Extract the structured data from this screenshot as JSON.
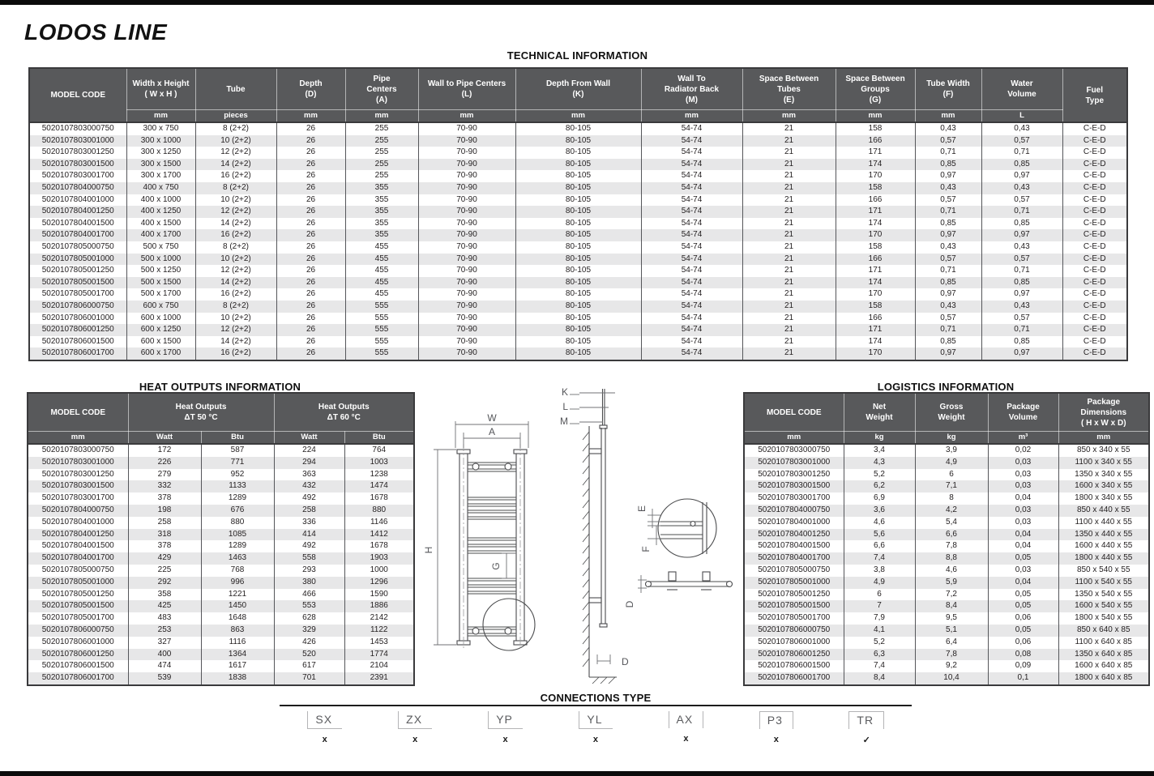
{
  "page": {
    "title": "LODOS LINE"
  },
  "colors": {
    "header_bg": "#58595B",
    "row_stripe": "#E7E7E8",
    "bar": "#0B0B0B"
  },
  "tech_section": {
    "title": "TECHNICAL INFORMATION",
    "table": {
      "headers": [
        "MODEL CODE",
        "Width x Height\n( W x H )",
        "Tube",
        "Depth\n(D)",
        "Pipe\nCenters\n(A)",
        "Wall to Pipe Centers\n(L)",
        "Depth From Wall\n(K)",
        "Wall To\nRadiator Back\n(M)",
        "Space Between\nTubes\n(E)",
        "Space Between\nGroups\n(G)",
        "Tube Width\n(F)",
        "Water\nVolume",
        "Fuel\nType"
      ],
      "units": [
        "mm",
        "pieces",
        "mm",
        "mm",
        "mm",
        "mm",
        "mm",
        "mm",
        "mm",
        "mm",
        "L"
      ],
      "rows": [
        [
          "5020107803000750",
          "300 x 750",
          "8 (2+2)",
          "26",
          "255",
          "70-90",
          "80-105",
          "54-74",
          "21",
          "158",
          "0,43",
          "0,43",
          "C-E-D"
        ],
        [
          "5020107803001000",
          "300 x 1000",
          "10 (2+2)",
          "26",
          "255",
          "70-90",
          "80-105",
          "54-74",
          "21",
          "166",
          "0,57",
          "0,57",
          "C-E-D"
        ],
        [
          "5020107803001250",
          "300 x 1250",
          "12 (2+2)",
          "26",
          "255",
          "70-90",
          "80-105",
          "54-74",
          "21",
          "171",
          "0,71",
          "0,71",
          "C-E-D"
        ],
        [
          "5020107803001500",
          "300 x 1500",
          "14 (2+2)",
          "26",
          "255",
          "70-90",
          "80-105",
          "54-74",
          "21",
          "174",
          "0,85",
          "0,85",
          "C-E-D"
        ],
        [
          "5020107803001700",
          "300 x 1700",
          "16 (2+2)",
          "26",
          "255",
          "70-90",
          "80-105",
          "54-74",
          "21",
          "170",
          "0,97",
          "0,97",
          "C-E-D"
        ],
        [
          "5020107804000750",
          "400 x 750",
          "8 (2+2)",
          "26",
          "355",
          "70-90",
          "80-105",
          "54-74",
          "21",
          "158",
          "0,43",
          "0,43",
          "C-E-D"
        ],
        [
          "5020107804001000",
          "400 x 1000",
          "10 (2+2)",
          "26",
          "355",
          "70-90",
          "80-105",
          "54-74",
          "21",
          "166",
          "0,57",
          "0,57",
          "C-E-D"
        ],
        [
          "5020107804001250",
          "400 x 1250",
          "12 (2+2)",
          "26",
          "355",
          "70-90",
          "80-105",
          "54-74",
          "21",
          "171",
          "0,71",
          "0,71",
          "C-E-D"
        ],
        [
          "5020107804001500",
          "400 x 1500",
          "14 (2+2)",
          "26",
          "355",
          "70-90",
          "80-105",
          "54-74",
          "21",
          "174",
          "0,85",
          "0,85",
          "C-E-D"
        ],
        [
          "5020107804001700",
          "400 x 1700",
          "16 (2+2)",
          "26",
          "355",
          "70-90",
          "80-105",
          "54-74",
          "21",
          "170",
          "0,97",
          "0,97",
          "C-E-D"
        ],
        [
          "5020107805000750",
          "500 x 750",
          "8 (2+2)",
          "26",
          "455",
          "70-90",
          "80-105",
          "54-74",
          "21",
          "158",
          "0,43",
          "0,43",
          "C-E-D"
        ],
        [
          "5020107805001000",
          "500 x 1000",
          "10 (2+2)",
          "26",
          "455",
          "70-90",
          "80-105",
          "54-74",
          "21",
          "166",
          "0,57",
          "0,57",
          "C-E-D"
        ],
        [
          "5020107805001250",
          "500 x 1250",
          "12 (2+2)",
          "26",
          "455",
          "70-90",
          "80-105",
          "54-74",
          "21",
          "171",
          "0,71",
          "0,71",
          "C-E-D"
        ],
        [
          "5020107805001500",
          "500 x 1500",
          "14 (2+2)",
          "26",
          "455",
          "70-90",
          "80-105",
          "54-74",
          "21",
          "174",
          "0,85",
          "0,85",
          "C-E-D"
        ],
        [
          "5020107805001700",
          "500 x 1700",
          "16 (2+2)",
          "26",
          "455",
          "70-90",
          "80-105",
          "54-74",
          "21",
          "170",
          "0,97",
          "0,97",
          "C-E-D"
        ],
        [
          "5020107806000750",
          "600 x 750",
          "8 (2+2)",
          "26",
          "555",
          "70-90",
          "80-105",
          "54-74",
          "21",
          "158",
          "0,43",
          "0,43",
          "C-E-D"
        ],
        [
          "5020107806001000",
          "600 x 1000",
          "10 (2+2)",
          "26",
          "555",
          "70-90",
          "80-105",
          "54-74",
          "21",
          "166",
          "0,57",
          "0,57",
          "C-E-D"
        ],
        [
          "5020107806001250",
          "600 x 1250",
          "12 (2+2)",
          "26",
          "555",
          "70-90",
          "80-105",
          "54-74",
          "21",
          "171",
          "0,71",
          "0,71",
          "C-E-D"
        ],
        [
          "5020107806001500",
          "600 x 1500",
          "14 (2+2)",
          "26",
          "555",
          "70-90",
          "80-105",
          "54-74",
          "21",
          "174",
          "0,85",
          "0,85",
          "C-E-D"
        ],
        [
          "5020107806001700",
          "600 x 1700",
          "16 (2+2)",
          "26",
          "555",
          "70-90",
          "80-105",
          "54-74",
          "21",
          "170",
          "0,97",
          "0,97",
          "C-E-D"
        ]
      ]
    }
  },
  "heat_section": {
    "title": "HEAT OUTPUTS INFORMATION",
    "table": {
      "headers": [
        "MODEL CODE",
        "Heat Outputs\nΔT  50 °C",
        "Heat Outputs\nΔT  60 °C"
      ],
      "units": [
        "mm",
        "Watt",
        "Btu",
        "Watt",
        "Btu"
      ],
      "rows": [
        [
          "5020107803000750",
          "172",
          "587",
          "224",
          "764"
        ],
        [
          "5020107803001000",
          "226",
          "771",
          "294",
          "1003"
        ],
        [
          "5020107803001250",
          "279",
          "952",
          "363",
          "1238"
        ],
        [
          "5020107803001500",
          "332",
          "1133",
          "432",
          "1474"
        ],
        [
          "5020107803001700",
          "378",
          "1289",
          "492",
          "1678"
        ],
        [
          "5020107804000750",
          "198",
          "676",
          "258",
          "880"
        ],
        [
          "5020107804001000",
          "258",
          "880",
          "336",
          "1146"
        ],
        [
          "5020107804001250",
          "318",
          "1085",
          "414",
          "1412"
        ],
        [
          "5020107804001500",
          "378",
          "1289",
          "492",
          "1678"
        ],
        [
          "5020107804001700",
          "429",
          "1463",
          "558",
          "1903"
        ],
        [
          "5020107805000750",
          "225",
          "768",
          "293",
          "1000"
        ],
        [
          "5020107805001000",
          "292",
          "996",
          "380",
          "1296"
        ],
        [
          "5020107805001250",
          "358",
          "1221",
          "466",
          "1590"
        ],
        [
          "5020107805001500",
          "425",
          "1450",
          "553",
          "1886"
        ],
        [
          "5020107805001700",
          "483",
          "1648",
          "628",
          "2142"
        ],
        [
          "5020107806000750",
          "253",
          "863",
          "329",
          "1122"
        ],
        [
          "5020107806001000",
          "327",
          "1116",
          "426",
          "1453"
        ],
        [
          "5020107806001250",
          "400",
          "1364",
          "520",
          "1774"
        ],
        [
          "5020107806001500",
          "474",
          "1617",
          "617",
          "2104"
        ],
        [
          "5020107806001700",
          "539",
          "1838",
          "701",
          "2391"
        ]
      ]
    }
  },
  "logistics_section": {
    "title": "LOGISTICS INFORMATION",
    "table": {
      "headers": [
        "MODEL CODE",
        "Net\nWeight",
        "Gross\nWeight",
        "Package\nVolume",
        "Package\nDimensions\n( H x W x D)"
      ],
      "units": [
        "mm",
        "kg",
        "kg",
        "m³",
        "mm"
      ],
      "rows": [
        [
          "5020107803000750",
          "3,4",
          "3,9",
          "0,02",
          "850 x 340 x 55"
        ],
        [
          "5020107803001000",
          "4,3",
          "4,9",
          "0,03",
          "1100 x 340 x 55"
        ],
        [
          "5020107803001250",
          "5,2",
          "6",
          "0,03",
          "1350 x 340 x 55"
        ],
        [
          "5020107803001500",
          "6,2",
          "7,1",
          "0,03",
          "1600 x 340 x 55"
        ],
        [
          "5020107803001700",
          "6,9",
          "8",
          "0,04",
          "1800 x 340 x 55"
        ],
        [
          "5020107804000750",
          "3,6",
          "4,2",
          "0,03",
          "850 x 440 x 55"
        ],
        [
          "5020107804001000",
          "4,6",
          "5,4",
          "0,03",
          "1100 x 440 x 55"
        ],
        [
          "5020107804001250",
          "5,6",
          "6,6",
          "0,04",
          "1350 x 440 x 55"
        ],
        [
          "5020107804001500",
          "6,6",
          "7,8",
          "0,04",
          "1600 x 440 x 55"
        ],
        [
          "5020107804001700",
          "7,4",
          "8,8",
          "0,05",
          "1800 x 440 x 55"
        ],
        [
          "5020107805000750",
          "3,8",
          "4,6",
          "0,03",
          "850 x 540 x 55"
        ],
        [
          "5020107805001000",
          "4,9",
          "5,9",
          "0,04",
          "1100 x 540 x 55"
        ],
        [
          "5020107805001250",
          "6",
          "7,2",
          "0,05",
          "1350 x 540 x 55"
        ],
        [
          "5020107805001500",
          "7",
          "8,4",
          "0,05",
          "1600 x 540 x 55"
        ],
        [
          "5020107805001700",
          "7,9",
          "9,5",
          "0,06",
          "1800 x 540 x 55"
        ],
        [
          "5020107806000750",
          "4,1",
          "5,1",
          "0,05",
          "850 x 640 x 85"
        ],
        [
          "5020107806001000",
          "5,2",
          "6,4",
          "0,06",
          "1100 x 640 x 85"
        ],
        [
          "5020107806001250",
          "6,3",
          "7,8",
          "0,08",
          "1350 x 640 x 85"
        ],
        [
          "5020107806001500",
          "7,4",
          "9,2",
          "0,09",
          "1600 x 640 x 85"
        ],
        [
          "5020107806001700",
          "8,4",
          "10,4",
          "0,1",
          "1800 x 640 x 85"
        ]
      ]
    }
  },
  "drawing": {
    "labels": {
      "width": "W",
      "pipe_centers": "A",
      "height": "H",
      "group_gap": "G",
      "k": "K",
      "l": "L",
      "m": "M",
      "depth_side": "D",
      "tube_gap": "E",
      "tube_width": "F",
      "depth_top": "D"
    }
  },
  "connections": {
    "title": "CONNECTIONS TYPE",
    "items": [
      {
        "label": "SX",
        "mark": "x"
      },
      {
        "label": "ZX",
        "mark": "x"
      },
      {
        "label": "YP",
        "mark": "x"
      },
      {
        "label": "YL",
        "mark": "x"
      },
      {
        "label": "AX",
        "mark": "x"
      },
      {
        "label": "P3",
        "mark": "x"
      },
      {
        "label": "TR",
        "mark": "✓"
      }
    ]
  }
}
